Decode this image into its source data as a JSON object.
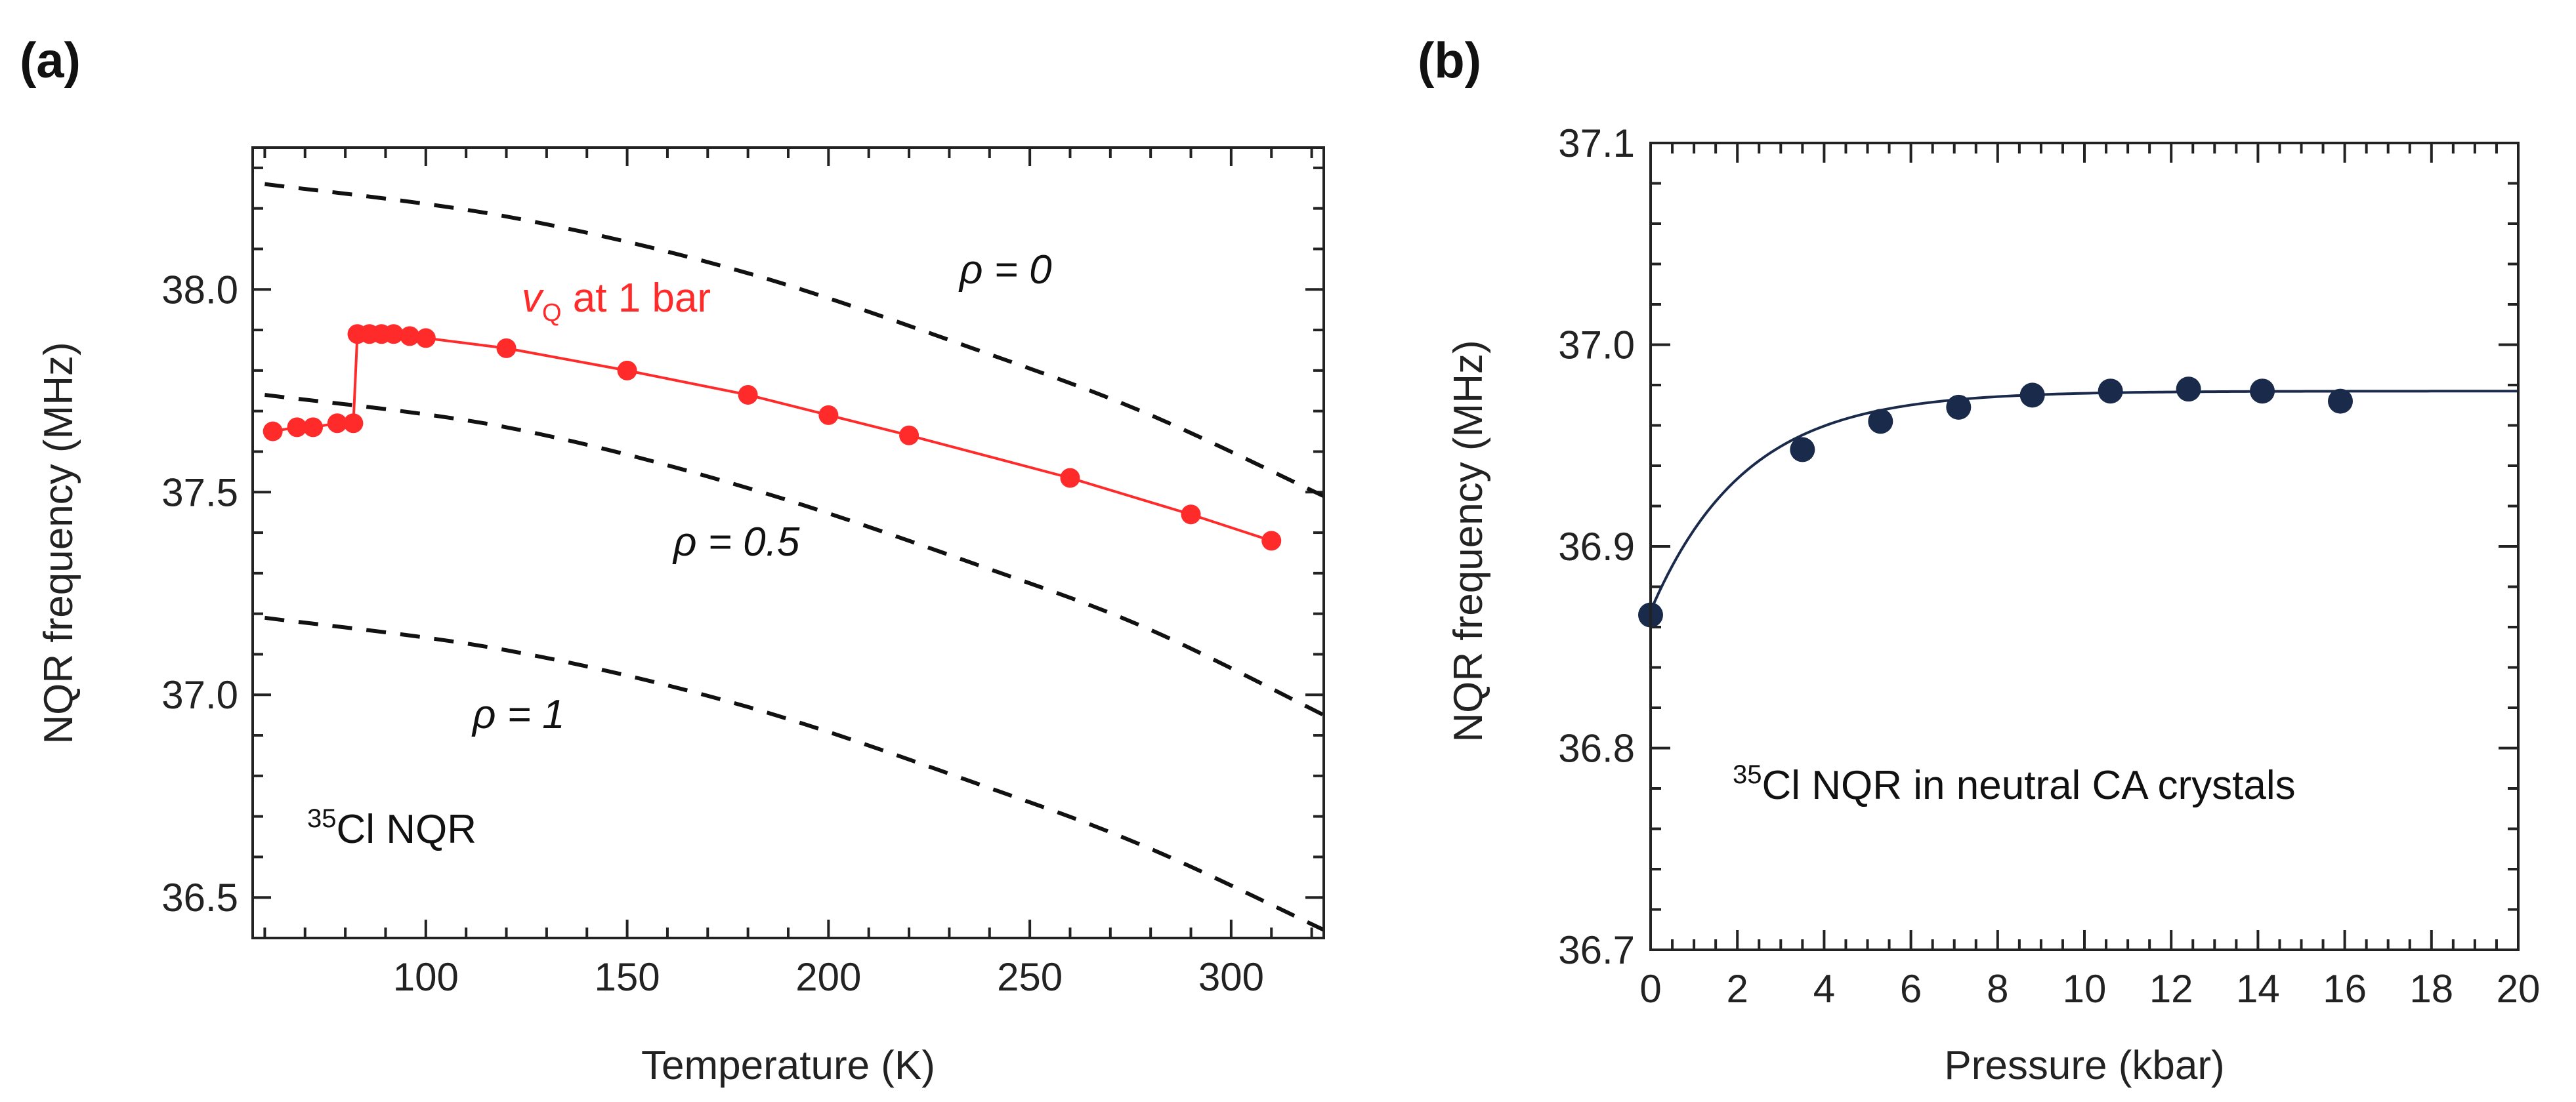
{
  "chart_data": [
    {
      "type": "scatter",
      "panel_label": "(a)",
      "xlabel": "Temperature (K)",
      "ylabel": "NQR frequency (MHz)",
      "xlim": [
        57,
        323
      ],
      "ylim": [
        36.4,
        38.35
      ],
      "xticks": [
        100,
        150,
        200,
        250,
        300
      ],
      "xtick_labels": [
        "100",
        "150",
        "200",
        "250",
        "300"
      ],
      "yticks": [
        36.5,
        37.0,
        37.5,
        38.0
      ],
      "ytick_labels": [
        "36.5",
        "37.0",
        "37.5",
        "38.0"
      ],
      "series": [
        {
          "name": "νQ at 1 bar",
          "color": "#ff2a2a",
          "x": [
            62,
            68,
            72,
            78,
            82,
            83,
            86,
            89,
            92,
            96,
            100,
            120,
            150,
            180,
            200,
            220,
            260,
            290,
            310
          ],
          "y": [
            37.65,
            37.66,
            37.66,
            37.67,
            37.67,
            37.89,
            37.89,
            37.89,
            37.89,
            37.885,
            37.88,
            37.855,
            37.8,
            37.74,
            37.69,
            37.64,
            37.535,
            37.445,
            37.38
          ]
        }
      ],
      "reference_curves": [
        {
          "name": "ρ = 0",
          "x": [
            60,
            120,
            180,
            240,
            280,
            323
          ],
          "y": [
            38.26,
            38.18,
            38.04,
            37.84,
            37.69,
            37.49
          ]
        },
        {
          "name": "ρ = 0.5",
          "x": [
            60,
            120,
            180,
            240,
            280,
            323
          ],
          "y": [
            37.74,
            37.66,
            37.51,
            37.31,
            37.16,
            36.95
          ]
        },
        {
          "name": "ρ = 1",
          "x": [
            60,
            120,
            180,
            240,
            280,
            323
          ],
          "y": [
            37.19,
            37.11,
            36.97,
            36.77,
            36.62,
            36.42
          ]
        }
      ],
      "annotations": {
        "nu_symbol": "v",
        "nu_subscript": "Q",
        "nu_rest": " at 1 bar",
        "rho0": "ρ = 0",
        "rho05": "ρ = 0.5",
        "rho1": "ρ = 1",
        "nqr_sup": "35",
        "nqr_rest": "Cl NQR"
      }
    },
    {
      "type": "scatter",
      "panel_label": "(b)",
      "xlabel": "Pressure (kbar)",
      "ylabel": "NQR frequency (MHz)",
      "xlim": [
        0,
        20
      ],
      "ylim": [
        36.7,
        37.1
      ],
      "xticks": [
        0,
        2,
        4,
        6,
        8,
        10,
        12,
        14,
        16,
        18,
        20
      ],
      "xtick_labels": [
        "0",
        "2",
        "4",
        "6",
        "8",
        "10",
        "12",
        "14",
        "16",
        "18",
        "20"
      ],
      "yticks": [
        36.7,
        36.8,
        36.9,
        37.0,
        37.1
      ],
      "ytick_labels": [
        "36.7",
        "36.8",
        "36.9",
        "37.0",
        "37.1"
      ],
      "series": [
        {
          "name": "35Cl NQR in neutral CA crystals",
          "color": "#1a2a4a",
          "x": [
            0,
            3.5,
            5.3,
            7.1,
            8.8,
            10.6,
            12.4,
            14.1,
            15.9
          ],
          "y": [
            36.866,
            36.948,
            36.962,
            36.969,
            36.975,
            36.977,
            36.978,
            36.977,
            36.972
          ]
        }
      ],
      "fit": {
        "y_inf": 36.977,
        "amplitude": 0.109,
        "rate": 0.46
      },
      "annotations": {
        "nqr_sup": "35",
        "nqr_rest": "Cl NQR in neutral CA crystals"
      }
    }
  ]
}
